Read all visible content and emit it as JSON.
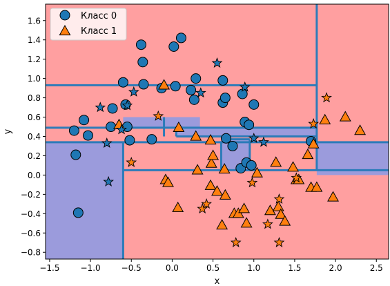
{
  "chart_data": {
    "type": "scatter",
    "title": "",
    "xlabel": "x",
    "ylabel": "y",
    "xlim": [
      -1.55,
      2.65
    ],
    "ylim": [
      -0.87,
      1.77
    ],
    "xticks": [
      "−1.5",
      "−1.0",
      "−0.5",
      "0.0",
      "0.5",
      "1.0",
      "1.5",
      "2.0",
      "2.5"
    ],
    "xtick_values": [
      -1.5,
      -1.0,
      -0.5,
      0.0,
      0.5,
      1.0,
      1.5,
      2.0,
      2.5
    ],
    "yticks": [
      "−0.8",
      "−0.6",
      "−0.4",
      "−0.2",
      "0.0",
      "0.2",
      "0.4",
      "0.6",
      "0.8",
      "1.0",
      "1.2",
      "1.4",
      "1.6"
    ],
    "ytick_values": [
      -0.8,
      -0.6,
      -0.4,
      -0.2,
      0.0,
      0.2,
      0.4,
      0.6,
      0.8,
      1.0,
      1.2,
      1.4,
      1.6
    ],
    "legend_position": "top-left",
    "colors": {
      "class0_region": "#9b9bdc",
      "class1_region": "#ff9fa0",
      "class0_marker": "#1f77b4",
      "class1_marker": "#ff7f0e",
      "boundary": "#2b7bb9"
    },
    "series": [
      {
        "name": "Класс 0",
        "marker": "circle",
        "points": [
          [
            -1.2,
            0.46
          ],
          [
            -1.18,
            0.21
          ],
          [
            -1.15,
            -0.39
          ],
          [
            -1.08,
            0.57
          ],
          [
            -1.03,
            0.41
          ],
          [
            -0.75,
            0.5
          ],
          [
            -0.73,
            0.69
          ],
          [
            -0.6,
            0.96
          ],
          [
            -0.57,
            0.73
          ],
          [
            -0.55,
            0.5
          ],
          [
            -0.52,
            0.36
          ],
          [
            -0.38,
            1.35
          ],
          [
            -0.36,
            1.17
          ],
          [
            -0.35,
            0.94
          ],
          [
            -0.25,
            0.37
          ],
          [
            -0.13,
            0.9
          ],
          [
            0.02,
            1.33
          ],
          [
            0.04,
            0.92
          ],
          [
            0.11,
            1.42
          ],
          [
            0.23,
            0.88
          ],
          [
            0.27,
            0.78
          ],
          [
            0.29,
            1.0
          ],
          [
            0.62,
            0.98
          ],
          [
            0.62,
            0.75
          ],
          [
            0.65,
            0.8
          ],
          [
            0.66,
            0.38
          ],
          [
            0.74,
            0.3
          ],
          [
            0.84,
            0.07
          ],
          [
            0.86,
            0.84
          ],
          [
            0.89,
            0.55
          ],
          [
            0.91,
            0.13
          ],
          [
            0.94,
            0.52
          ],
          [
            0.97,
            0.1
          ],
          [
            1.0,
            0.73
          ],
          [
            1.7,
            0.35
          ]
        ]
      },
      {
        "name": "Класс 1",
        "marker": "triangle",
        "points": [
          [
            -0.65,
            0.52
          ],
          [
            -0.1,
            0.93
          ],
          [
            0.07,
            -0.34
          ],
          [
            0.08,
            0.49
          ],
          [
            -0.08,
            -0.05
          ],
          [
            -0.05,
            -0.08
          ],
          [
            0.29,
            0.4
          ],
          [
            0.31,
            0.05
          ],
          [
            0.47,
            0.36
          ],
          [
            0.47,
            -0.11
          ],
          [
            0.48,
            0.12
          ],
          [
            0.5,
            0.2
          ],
          [
            0.55,
            -0.17
          ],
          [
            0.61,
            -0.52
          ],
          [
            0.64,
            0.06
          ],
          [
            0.65,
            -0.21
          ],
          [
            0.76,
            -0.4
          ],
          [
            0.81,
            -0.4
          ],
          [
            0.88,
            -0.35
          ],
          [
            0.91,
            -0.5
          ],
          [
            1.04,
            0.02
          ],
          [
            1.2,
            -0.37
          ],
          [
            1.27,
            0.13
          ],
          [
            1.3,
            -0.33
          ],
          [
            1.33,
            -0.41
          ],
          [
            1.38,
            -0.48
          ],
          [
            1.48,
            0.08
          ],
          [
            1.52,
            -0.05
          ],
          [
            1.55,
            -0.05
          ],
          [
            1.66,
            0.21
          ],
          [
            1.7,
            -0.13
          ],
          [
            1.73,
            0.32
          ],
          [
            1.77,
            -0.13
          ],
          [
            1.87,
            0.57
          ],
          [
            1.97,
            -0.23
          ],
          [
            2.12,
            0.6
          ],
          [
            2.3,
            0.46
          ]
        ]
      },
      {
        "name": "",
        "marker": "star",
        "color": "class0",
        "points": [
          [
            -0.88,
            0.7
          ],
          [
            -0.8,
            0.33
          ],
          [
            -0.78,
            -0.07
          ],
          [
            -0.62,
            0.47
          ],
          [
            -0.55,
            0.72
          ],
          [
            -0.47,
            0.86
          ],
          [
            0.35,
            0.85
          ],
          [
            0.55,
            1.16
          ],
          [
            0.89,
            0.91
          ],
          [
            1.0,
            0.38
          ],
          [
            1.12,
            0.34
          ]
        ]
      },
      {
        "name": "",
        "marker": "star",
        "color": "class1",
        "points": [
          [
            -0.5,
            0.13
          ],
          [
            -0.17,
            0.61
          ],
          [
            0.37,
            -0.35
          ],
          [
            0.42,
            -0.3
          ],
          [
            0.78,
            -0.7
          ],
          [
            0.98,
            -0.08
          ],
          [
            1.17,
            -0.51
          ],
          [
            1.31,
            -0.25
          ],
          [
            1.31,
            -0.7
          ],
          [
            1.52,
            -0.03
          ],
          [
            1.73,
            0.53
          ],
          [
            1.89,
            0.8
          ]
        ]
      }
    ],
    "regions": {
      "class0": [
        [
          -1.55,
          0.34,
          1.77,
          1.77
        ],
        [
          -1.55,
          -0.6,
          -0.87,
          0.34
        ],
        [
          -0.6,
          0.34,
          0.5,
          0.6
        ],
        [
          0.05,
          1.77,
          0.4,
          0.5
        ],
        [
          0.6,
          0.95,
          0.05,
          0.37
        ],
        [
          1.77,
          2.65,
          0.34,
          0.0
        ]
      ],
      "class1": [
        [
          -0.6,
          2.65,
          -0.87,
          0.05
        ],
        [
          -0.6,
          0.6,
          0.05,
          0.34
        ],
        [
          -0.6,
          -0.1,
          0.5,
          0.6
        ],
        [
          0.95,
          1.77,
          0.05,
          0.37
        ],
        [
          1.77,
          2.65,
          0.34,
          1.77
        ],
        [
          1.55,
          1.77,
          0.05,
          0.34
        ],
        [
          -0.1,
          0.05,
          0.4,
          0.5
        ]
      ]
    },
    "boundaries": {
      "vertical": [
        [
          -0.6,
          -0.87,
          0.34
        ],
        [
          -0.1,
          0.4,
          0.6
        ],
        [
          0.05,
          0.4,
          0.5
        ],
        [
          0.6,
          0.05,
          0.34
        ],
        [
          0.95,
          0.05,
          0.37
        ],
        [
          1.77,
          0.05,
          1.77
        ]
      ],
      "horizontal": [
        [
          -1.55,
          1.77,
          0.93
        ],
        [
          -1.55,
          1.77,
          0.49
        ],
        [
          -1.55,
          2.65,
          0.34
        ],
        [
          0.05,
          1.77,
          0.4
        ],
        [
          -0.6,
          2.65,
          0.05
        ],
        [
          0.6,
          0.95,
          0.37
        ]
      ]
    }
  }
}
